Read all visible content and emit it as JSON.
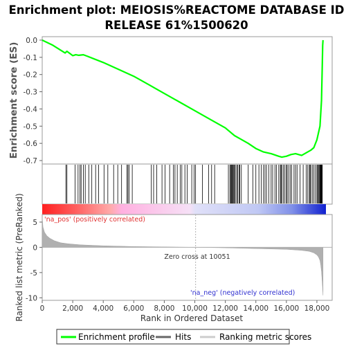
{
  "title_line1": "Enrichment plot: MEIOSIS%REACTOME DATABASE ID",
  "title_line2": "RELEASE 61%1500620",
  "colors": {
    "profile": "#00ff00",
    "hits": "#000000",
    "metric": "#b0b0b0",
    "pos_label": "#e03030",
    "neg_label": "#3030d0",
    "zero_line": "#b0b0b0"
  },
  "legend": {
    "profile": "Enrichment profile",
    "hits": "Hits",
    "metric": "Ranking metric scores"
  },
  "chart_data": [
    {
      "type": "line",
      "name": "enrichment-profile",
      "ylabel": "Enrichment score (ES)",
      "ylim": [
        -0.72,
        0.02
      ],
      "xlim": [
        0,
        19000
      ],
      "yticks": [
        "0.0",
        "-0.1",
        "-0.2",
        "-0.3",
        "-0.4",
        "-0.5",
        "-0.6",
        "-0.7"
      ],
      "ytick_values": [
        0.0,
        -0.1,
        -0.2,
        -0.3,
        -0.4,
        -0.5,
        -0.6,
        -0.7
      ],
      "grid": false,
      "x": [
        0,
        700,
        1500,
        1620,
        2000,
        2200,
        2400,
        2700,
        3000,
        4000,
        5000,
        6000,
        7000,
        8000,
        9000,
        10000,
        11000,
        12000,
        12600,
        13000,
        13500,
        14000,
        14500,
        15000,
        15500,
        15700,
        16000,
        16300,
        16600,
        17000,
        17300,
        17600,
        17800,
        18000,
        18200,
        18300,
        18350,
        18380,
        18400
      ],
      "y": [
        0.0,
        -0.03,
        -0.075,
        -0.065,
        -0.09,
        -0.085,
        -0.088,
        -0.085,
        -0.095,
        -0.13,
        -0.17,
        -0.21,
        -0.26,
        -0.31,
        -0.36,
        -0.41,
        -0.46,
        -0.51,
        -0.555,
        -0.575,
        -0.6,
        -0.63,
        -0.65,
        -0.66,
        -0.675,
        -0.68,
        -0.675,
        -0.665,
        -0.66,
        -0.67,
        -0.655,
        -0.64,
        -0.625,
        -0.58,
        -0.5,
        -0.35,
        -0.15,
        -0.03,
        0.0
      ]
    },
    {
      "type": "bar",
      "name": "hits",
      "hit_ranks": [
        1550,
        1620,
        2150,
        2350,
        2480,
        2550,
        2700,
        2820,
        3050,
        3250,
        3500,
        3700,
        4050,
        4300,
        4680,
        4950,
        5200,
        5550,
        5620,
        5700,
        5900,
        7150,
        7300,
        7500,
        7850,
        8050,
        8350,
        8600,
        8700,
        8850,
        9050,
        9150,
        9350,
        9500,
        9800,
        9950,
        10050,
        10500,
        10900,
        11100,
        11300,
        12200,
        12300,
        12350,
        12400,
        12450,
        12500,
        12550,
        12600,
        12650,
        12750,
        12800,
        12900,
        12950,
        13050,
        13500,
        13800,
        14000,
        14200,
        14350,
        14500,
        14600,
        14700,
        14850,
        15000,
        15100,
        15250,
        15350,
        15500,
        15600,
        15650,
        15700,
        15800,
        15900,
        16000,
        16050,
        16150,
        16250,
        16350,
        16500,
        16600,
        16700,
        16900,
        17100,
        17300,
        17400,
        17500,
        17550,
        17600,
        17700,
        17800,
        17900,
        18000,
        18050,
        18100,
        18150,
        18200,
        18230,
        18260,
        18290,
        18310,
        18330,
        18350
      ]
    },
    {
      "type": "area",
      "name": "ranked-list-metric",
      "xlabel": "Rank in Ordered Dataset",
      "ylabel": "Ranked list metric (PreRanked)",
      "ylim": [
        -10.5,
        6.5
      ],
      "yticks": [
        "5",
        "0",
        "-5",
        "-10"
      ],
      "ytick_values": [
        5,
        0,
        -5,
        -10
      ],
      "xticks": [
        "0",
        "2,000",
        "4,000",
        "6,000",
        "8,000",
        "10,000",
        "12,000",
        "14,000",
        "16,000",
        "18,000"
      ],
      "xtick_values": [
        0,
        2000,
        4000,
        6000,
        8000,
        10000,
        12000,
        14000,
        16000,
        18000
      ],
      "x": [
        0,
        50,
        150,
        300,
        500,
        800,
        1200,
        1700,
        2500,
        4000,
        6000,
        8000,
        10051,
        12000,
        14000,
        16000,
        17000,
        17500,
        17800,
        18000,
        18100,
        18200,
        18250,
        18300,
        18350,
        18400
      ],
      "y": [
        6.0,
        4.0,
        3.0,
        2.3,
        1.8,
        1.3,
        0.9,
        0.7,
        0.5,
        0.3,
        0.15,
        0.08,
        0.0,
        -0.1,
        -0.25,
        -0.4,
        -0.6,
        -0.8,
        -1.1,
        -1.5,
        -1.9,
        -2.6,
        -3.5,
        -4.8,
        -7.0,
        -9.5
      ],
      "zero_cross_rank": 10051,
      "annotations": {
        "pos": "'na_pos' (positively correlated)",
        "neg": "'na_neg' (negatively correlated)",
        "zero": "Zero cross at 10051"
      }
    }
  ]
}
